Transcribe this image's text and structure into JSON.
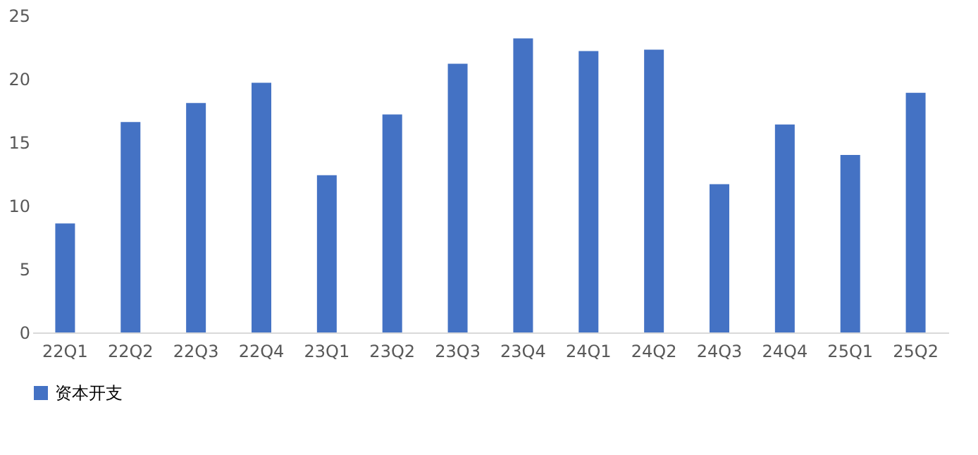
{
  "chart_data": {
    "type": "bar",
    "categories": [
      "22Q1",
      "22Q2",
      "22Q3",
      "22Q4",
      "23Q1",
      "23Q2",
      "23Q3",
      "23Q4",
      "24Q1",
      "24Q2",
      "24Q3",
      "24Q4",
      "25Q1",
      "25Q2"
    ],
    "series": [
      {
        "name": "资本开支",
        "color": "#4472c4",
        "values": [
          8.6,
          16.6,
          18.1,
          19.7,
          12.4,
          17.2,
          21.2,
          23.2,
          22.2,
          22.3,
          11.7,
          16.4,
          14.0,
          18.9
        ]
      }
    ],
    "ylim": [
      0,
      25
    ],
    "yticks": [
      0,
      5,
      10,
      15,
      20,
      25
    ],
    "grid": false,
    "legend": "bottom"
  }
}
